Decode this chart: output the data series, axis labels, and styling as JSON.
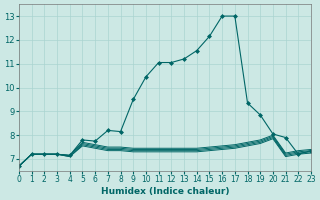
{
  "xlabel": "Humidex (Indice chaleur)",
  "background_color": "#cce8e4",
  "grid_color": "#aad4d0",
  "line_color": "#006666",
  "xlim": [
    0,
    23
  ],
  "ylim": [
    6.5,
    13.5
  ],
  "xticks": [
    0,
    1,
    2,
    3,
    4,
    5,
    6,
    7,
    8,
    9,
    10,
    11,
    12,
    13,
    14,
    15,
    16,
    17,
    18,
    19,
    20,
    21,
    22,
    23
  ],
  "yticks": [
    7,
    8,
    9,
    10,
    11,
    12,
    13
  ],
  "lines": [
    {
      "x": [
        0,
        1,
        2,
        3,
        4,
        5,
        6,
        7,
        8,
        9,
        10,
        11,
        12,
        13,
        14,
        15,
        16,
        17,
        18,
        19,
        20,
        21,
        22,
        23
      ],
      "y": [
        6.7,
        7.2,
        7.2,
        7.2,
        7.15,
        7.8,
        7.75,
        8.2,
        8.15,
        9.5,
        10.45,
        11.05,
        11.05,
        11.2,
        11.55,
        12.15,
        13.0,
        13.0,
        9.35,
        8.85,
        8.05,
        7.9,
        7.2,
        7.35
      ],
      "marker": true
    },
    {
      "x": [
        0,
        1,
        2,
        3,
        4,
        5,
        6,
        7,
        8,
        9,
        10,
        11,
        12,
        13,
        14,
        15,
        16,
        17,
        18,
        19,
        20,
        21,
        22,
        23
      ],
      "y": [
        6.7,
        7.2,
        7.2,
        7.2,
        7.15,
        7.7,
        7.6,
        7.5,
        7.5,
        7.45,
        7.45,
        7.45,
        7.45,
        7.45,
        7.45,
        7.5,
        7.55,
        7.6,
        7.7,
        7.8,
        8.0,
        7.25,
        7.35,
        7.4
      ],
      "marker": false
    },
    {
      "x": [
        0,
        1,
        2,
        3,
        4,
        5,
        6,
        7,
        8,
        9,
        10,
        11,
        12,
        13,
        14,
        15,
        16,
        17,
        18,
        19,
        20,
        21,
        22,
        23
      ],
      "y": [
        6.7,
        7.2,
        7.2,
        7.2,
        7.15,
        7.65,
        7.55,
        7.45,
        7.45,
        7.4,
        7.4,
        7.4,
        7.4,
        7.4,
        7.4,
        7.45,
        7.5,
        7.55,
        7.65,
        7.75,
        7.95,
        7.2,
        7.3,
        7.35
      ],
      "marker": false
    },
    {
      "x": [
        0,
        1,
        2,
        3,
        4,
        5,
        6,
        7,
        8,
        9,
        10,
        11,
        12,
        13,
        14,
        15,
        16,
        17,
        18,
        19,
        20,
        21,
        22,
        23
      ],
      "y": [
        6.7,
        7.2,
        7.2,
        7.2,
        7.1,
        7.6,
        7.5,
        7.4,
        7.4,
        7.35,
        7.35,
        7.35,
        7.35,
        7.35,
        7.35,
        7.4,
        7.45,
        7.5,
        7.6,
        7.7,
        7.9,
        7.15,
        7.25,
        7.3
      ],
      "marker": false
    },
    {
      "x": [
        0,
        1,
        2,
        3,
        4,
        5,
        6,
        7,
        8,
        9,
        10,
        11,
        12,
        13,
        14,
        15,
        16,
        17,
        18,
        19,
        20,
        21,
        22,
        23
      ],
      "y": [
        6.7,
        7.2,
        7.2,
        7.2,
        7.1,
        7.55,
        7.45,
        7.35,
        7.35,
        7.3,
        7.3,
        7.3,
        7.3,
        7.3,
        7.3,
        7.35,
        7.4,
        7.45,
        7.55,
        7.65,
        7.85,
        7.1,
        7.2,
        7.25
      ],
      "marker": false
    }
  ]
}
